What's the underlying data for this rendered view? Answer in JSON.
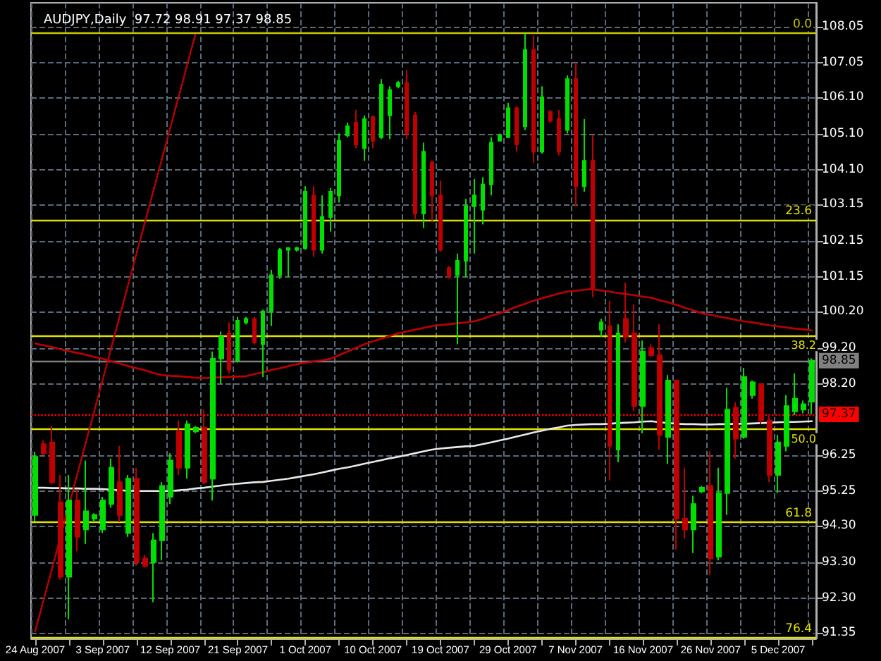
{
  "chart_data": {
    "type": "candlestick",
    "title": "AUDJPY,Daily  97.72 98.91 97.37 98.85",
    "categories": [
      "24 Aug 2007",
      null,
      null,
      null,
      null,
      null,
      null,
      null,
      "3 Sep 2007",
      null,
      null,
      null,
      null,
      null,
      null,
      null,
      "12 Sep 2007",
      null,
      null,
      null,
      null,
      null,
      null,
      null,
      "21 Sep 2007",
      null,
      null,
      null,
      null,
      null,
      null,
      null,
      "1 Oct 2007",
      null,
      null,
      null,
      null,
      null,
      null,
      null,
      "10 Oct 2007",
      null,
      null,
      null,
      null,
      null,
      null,
      null,
      "19 Oct 2007",
      null,
      null,
      null,
      null,
      null,
      null,
      null,
      "29 Oct 2007",
      null,
      null,
      null,
      null,
      null,
      null,
      null,
      "7 Nov 2007",
      null,
      null,
      null,
      null,
      null,
      null,
      null,
      "16 Nov 2007",
      null,
      null,
      null,
      null,
      null,
      null,
      null,
      "26 Nov 2007",
      null,
      null,
      null,
      null,
      null,
      null,
      null,
      "5 Dec 2007",
      null,
      null,
      null,
      null
    ],
    "ohlc": [
      [
        94.6,
        96.34,
        94.42,
        96.2
      ],
      [
        96.55,
        96.65,
        96.25,
        96.3
      ],
      [
        96.6,
        97.05,
        95.45,
        95.5
      ],
      [
        94.95,
        95.7,
        92.82,
        92.9
      ],
      [
        92.9,
        95.7,
        91.73,
        95.0
      ],
      [
        95.0,
        95.3,
        93.6,
        94.0
      ],
      [
        94.2,
        96.1,
        93.8,
        94.7
      ],
      [
        94.5,
        94.65,
        94.4,
        94.6
      ],
      [
        94.2,
        95.1,
        94.1,
        95.0
      ],
      [
        94.9,
        96.15,
        94.8,
        95.9
      ],
      [
        95.5,
        96.5,
        94.4,
        94.6
      ],
      [
        94.1,
        95.7,
        94.0,
        95.6
      ],
      [
        95.6,
        95.9,
        93.2,
        93.3
      ],
      [
        93.4,
        93.5,
        93.15,
        93.2
      ],
      [
        93.3,
        94.1,
        92.2,
        93.9
      ],
      [
        93.9,
        95.5,
        93.35,
        95.4
      ],
      [
        95.1,
        96.3,
        94.9,
        96.1
      ],
      [
        96.9,
        97.2,
        95.7,
        95.9
      ],
      [
        95.9,
        97.2,
        95.6,
        97.1
      ],
      [
        96.9,
        97.05,
        96.85,
        97.0
      ],
      [
        97.0,
        97.5,
        95.45,
        95.5
      ],
      [
        95.6,
        99.1,
        95.0,
        98.9
      ],
      [
        98.9,
        99.65,
        98.2,
        99.5
      ],
      [
        99.6,
        99.9,
        98.5,
        98.6
      ],
      [
        98.85,
        100.05,
        98.8,
        99.95
      ],
      [
        99.9,
        100.05,
        99.85,
        100.0
      ],
      [
        100.0,
        100.05,
        99.3,
        99.35
      ],
      [
        99.3,
        100.25,
        98.4,
        100.2
      ],
      [
        100.2,
        101.35,
        99.8,
        101.2
      ],
      [
        101.2,
        101.95,
        101.1,
        101.9
      ],
      [
        101.9,
        101.97,
        101.15,
        101.95
      ],
      [
        101.9,
        101.98,
        101.85,
        101.95
      ],
      [
        101.95,
        103.65,
        101.9,
        103.5
      ],
      [
        103.4,
        103.65,
        101.7,
        101.9
      ],
      [
        101.9,
        103.4,
        101.8,
        102.8
      ],
      [
        102.8,
        103.6,
        102.4,
        103.5
      ],
      [
        103.4,
        105.1,
        103.2,
        104.9
      ],
      [
        105.05,
        105.4,
        105.0,
        105.3
      ],
      [
        105.4,
        105.75,
        104.7,
        104.8
      ],
      [
        104.7,
        105.6,
        104.35,
        105.5
      ],
      [
        105.55,
        105.6,
        104.7,
        104.9
      ],
      [
        105.0,
        106.6,
        104.95,
        106.45
      ],
      [
        105.6,
        106.4,
        104.95,
        106.3
      ],
      [
        106.4,
        106.55,
        106.35,
        106.5
      ],
      [
        106.5,
        106.85,
        104.95,
        105.1
      ],
      [
        105.6,
        105.7,
        102.75,
        102.9
      ],
      [
        102.9,
        104.85,
        102.5,
        104.6
      ],
      [
        104.3,
        104.35,
        102.7,
        103.4
      ],
      [
        103.4,
        103.8,
        101.85,
        101.9
      ],
      [
        101.4,
        101.45,
        101.1,
        101.15
      ],
      [
        101.2,
        101.8,
        99.3,
        101.6
      ],
      [
        101.6,
        103.3,
        101.15,
        103.1
      ],
      [
        103.1,
        103.85,
        101.8,
        103.4
      ],
      [
        103.0,
        103.9,
        102.6,
        103.7
      ],
      [
        103.7,
        105.0,
        103.4,
        104.85
      ],
      [
        104.9,
        105.1,
        104.9,
        105.05
      ],
      [
        105.0,
        105.95,
        105.0,
        105.8
      ],
      [
        105.8,
        105.85,
        104.6,
        104.8
      ],
      [
        105.3,
        107.85,
        105.2,
        107.4
      ],
      [
        107.4,
        107.8,
        104.3,
        104.6
      ],
      [
        104.6,
        106.4,
        104.55,
        106.1
      ],
      [
        105.7,
        105.75,
        105.4,
        105.45
      ],
      [
        105.5,
        105.75,
        104.5,
        104.6
      ],
      [
        105.2,
        106.7,
        105.1,
        106.6
      ],
      [
        106.6,
        107.05,
        103.1,
        103.65
      ],
      [
        103.65,
        105.5,
        103.5,
        104.35
      ],
      [
        104.35,
        105.05,
        100.6,
        100.85
      ],
      [
        99.7,
        100.0,
        99.5,
        99.9
      ],
      [
        99.8,
        100.5,
        95.55,
        96.5
      ],
      [
        96.4,
        99.85,
        96.05,
        99.6
      ],
      [
        100.0,
        101.0,
        99.35,
        99.5
      ],
      [
        99.6,
        100.4,
        97.45,
        97.6
      ],
      [
        97.6,
        99.4,
        96.85,
        99.1
      ],
      [
        99.2,
        99.3,
        98.95,
        99.0
      ],
      [
        99.0,
        99.85,
        96.4,
        96.8
      ],
      [
        96.75,
        98.45,
        96.0,
        98.3
      ],
      [
        98.3,
        98.3,
        93.65,
        94.5
      ],
      [
        94.5,
        95.9,
        93.95,
        94.2
      ],
      [
        94.2,
        95.13,
        93.55,
        94.9
      ],
      [
        95.25,
        95.4,
        95.2,
        95.35
      ],
      [
        95.4,
        96.35,
        92.95,
        93.4
      ],
      [
        93.45,
        95.9,
        93.35,
        95.2
      ],
      [
        95.2,
        98.1,
        94.6,
        97.5
      ],
      [
        97.55,
        97.7,
        96.15,
        96.7
      ],
      [
        96.75,
        98.65,
        96.7,
        98.4
      ],
      [
        97.9,
        98.3,
        97.8,
        98.25
      ],
      [
        98.2,
        98.2,
        97.1,
        97.2
      ],
      [
        97.2,
        97.35,
        95.5,
        95.7
      ],
      [
        95.7,
        96.8,
        95.2,
        96.6
      ],
      [
        96.5,
        97.9,
        96.35,
        97.6
      ],
      [
        97.45,
        98.5,
        97.35,
        97.8
      ],
      [
        97.5,
        97.75,
        97.4,
        97.65
      ],
      [
        97.72,
        98.91,
        97.37,
        98.85
      ]
    ],
    "colors": [
      "#00e000",
      "#c00000",
      "#c00000",
      "#c00000",
      "#00e000",
      "#c00000",
      "#00e000",
      "#00e000",
      "#00e000",
      "#00e000",
      "#c00000",
      "#00e000",
      "#c00000",
      "#c00000",
      "#00e000",
      "#00e000",
      "#00e000",
      "#c00000",
      "#00e000",
      "#00e000",
      "#c00000",
      "#00e000",
      "#00e000",
      "#c00000",
      "#00e000",
      "#00e000",
      "#c00000",
      "#00e000",
      "#00e000",
      "#00e000",
      "#00e000",
      "#00e000",
      "#00e000",
      "#c00000",
      "#00e000",
      "#00e000",
      "#00e000",
      "#00e000",
      "#c00000",
      "#00e000",
      "#c00000",
      "#00e000",
      "#00e000",
      "#00e000",
      "#c00000",
      "#c00000",
      "#00e000",
      "#c00000",
      "#c00000",
      "#c00000",
      "#00e000",
      "#00e000",
      "#00e000",
      "#00e000",
      "#00e000",
      "#00e000",
      "#00e000",
      "#c00000",
      "#00e000",
      "#c00000",
      "#00e000",
      "#c00000",
      "#c00000",
      "#00e000",
      "#c00000",
      "#00e000",
      "#c00000",
      "#00e000",
      "#c00000",
      "#00e000",
      "#c00000",
      "#c00000",
      "#00e000",
      "#c00000",
      "#c00000",
      "#00e000",
      "#c00000",
      "#c00000",
      "#00e000",
      "#00e000",
      "#c00000",
      "#00e000",
      "#00e000",
      "#c00000",
      "#00e000",
      "#00e000",
      "#c00000",
      "#c00000",
      "#00e000",
      "#00e000",
      "#00e000",
      "#00e000",
      "#00e000"
    ],
    "series": [
      {
        "type": "line",
        "color": "#c00000",
        "values": [
          99.32,
          99.27,
          99.22,
          99.16,
          99.11,
          99.06,
          99.01,
          98.95,
          98.9,
          98.83,
          98.77,
          98.7,
          98.64,
          98.58,
          98.51,
          98.45,
          98.43,
          98.42,
          98.4,
          98.38,
          98.37,
          98.38,
          98.39,
          98.4,
          98.41,
          98.42,
          98.48,
          98.53,
          98.59,
          98.64,
          98.7,
          98.75,
          98.79,
          98.83,
          98.86,
          98.9,
          99.0,
          99.1,
          99.2,
          99.3,
          99.38,
          99.45,
          99.53,
          99.6,
          99.65,
          99.7,
          99.75,
          99.8,
          99.83,
          99.85,
          99.88,
          99.9,
          99.93,
          100.0,
          100.08,
          100.15,
          100.24,
          100.33,
          100.41,
          100.5,
          100.56,
          100.63,
          100.69,
          100.75,
          100.77,
          100.8,
          100.82,
          100.78,
          100.75,
          100.71,
          100.68,
          100.65,
          100.61,
          100.58,
          100.51,
          100.45,
          100.38,
          100.3,
          100.23,
          100.15,
          100.11,
          100.06,
          100.02,
          99.97,
          99.93,
          99.9,
          99.86,
          99.82,
          99.79,
          99.76,
          99.73,
          99.71,
          99.68
        ]
      },
      {
        "type": "line",
        "color": "#e8e8e8",
        "values": [
          95.35,
          95.35,
          95.34,
          95.34,
          95.33,
          95.33,
          95.32,
          95.32,
          95.31,
          95.3,
          95.28,
          95.27,
          95.26,
          95.26,
          95.26,
          95.26,
          95.26,
          95.28,
          95.3,
          95.33,
          95.35,
          95.38,
          95.41,
          95.44,
          95.46,
          95.48,
          95.5,
          95.51,
          95.54,
          95.57,
          95.6,
          95.64,
          95.68,
          95.72,
          95.77,
          95.82,
          95.87,
          95.91,
          95.96,
          96.01,
          96.06,
          96.11,
          96.16,
          96.2,
          96.25,
          96.3,
          96.35,
          96.4,
          96.43,
          96.45,
          96.47,
          96.49,
          96.5,
          96.55,
          96.6,
          96.65,
          96.7,
          96.76,
          96.81,
          96.87,
          96.92,
          96.97,
          97.01,
          97.06,
          97.08,
          97.09,
          97.1,
          97.1,
          97.11,
          97.13,
          97.14,
          97.15,
          97.17,
          97.18,
          97.15,
          97.13,
          97.11,
          97.1,
          97.1,
          97.09,
          97.09,
          97.1,
          97.1,
          97.11,
          97.11,
          97.12,
          97.13,
          97.14,
          97.15,
          97.16,
          97.16,
          97.17,
          97.18
        ]
      },
      {
        "type": "line",
        "color": "#c00000",
        "line_style": "dotted",
        "values": [
          91.4,
          92.27,
          93.13,
          94.0,
          94.87,
          95.73,
          96.6,
          97.46,
          98.33,
          99.2,
          100.06,
          100.93,
          101.8,
          102.66,
          103.53,
          104.4,
          105.26,
          106.13,
          106.99,
          107.86,
          null,
          null,
          null,
          null,
          null,
          null,
          null,
          null,
          null,
          null,
          null,
          null,
          null,
          null,
          null,
          null,
          null,
          null,
          null,
          null,
          null,
          null,
          null,
          null,
          null,
          null,
          null,
          null,
          null,
          null,
          null,
          null,
          null,
          null,
          null,
          null,
          null,
          null,
          null,
          null,
          null,
          null,
          null,
          null,
          null,
          null,
          null,
          null,
          null,
          null,
          null,
          null,
          null,
          null,
          null,
          null,
          null,
          null,
          null,
          null,
          null,
          null,
          null,
          null,
          null,
          null,
          null,
          null,
          null,
          null,
          null,
          null,
          null
        ]
      }
    ],
    "ylim": [
      91.2,
      108.7
    ],
    "yticks": [
      108.05,
      107.05,
      {
        "value": 106.1,
        "label": "106.10"
      },
      {
        "value": 105.1,
        "label": "105.10"
      },
      {
        "value": 104.1,
        "label": "104.10"
      },
      103.15,
      102.15,
      101.15,
      {
        "value": 100.2,
        "label": "100.20"
      },
      {
        "value": 99.2,
        "label": "99.20"
      },
      {
        "value": 98.2,
        "label": "98.20"
      },
      96.25,
      95.25,
      {
        "value": 94.3,
        "label": "94.30"
      },
      {
        "value": 93.3,
        "label": "93.30"
      },
      {
        "value": 92.3,
        "label": "92.30"
      },
      91.35
    ],
    "ref_lines": [
      {
        "axis": "y",
        "value": 107.86,
        "color": "#c8c800"
      },
      {
        "axis": "y",
        "value": 102.72,
        "color": "#e0e000"
      },
      {
        "axis": "y",
        "value": 99.54,
        "color": "#e0e000"
      },
      {
        "axis": "y",
        "value": 96.97,
        "color": "#e0e000"
      },
      {
        "axis": "y",
        "value": 94.4,
        "color": "#e0e000"
      },
      {
        "axis": "y",
        "value": 91.22,
        "color": "#e0e000"
      },
      {
        "axis": "y",
        "value": 98.85,
        "label": "98.85",
        "color": "#808080",
        "line_style": "solid"
      },
      {
        "axis": "y",
        "value": 97.37,
        "label": "97.37",
        "color": "#ff0000",
        "line_style": "dotted"
      }
    ],
    "annotations": [
      {
        "text": "0.0",
        "y": 107.86
      },
      {
        "text": "23.6",
        "y": 102.72
      },
      {
        "text": "38.2",
        "y": 99.54
      },
      {
        "text": "50.0",
        "y": 96.97
      },
      {
        "text": "61.8",
        "y": 94.4
      },
      {
        "text": "76.4",
        "y": 91.22
      }
    ],
    "grid": true,
    "marker": "none"
  }
}
